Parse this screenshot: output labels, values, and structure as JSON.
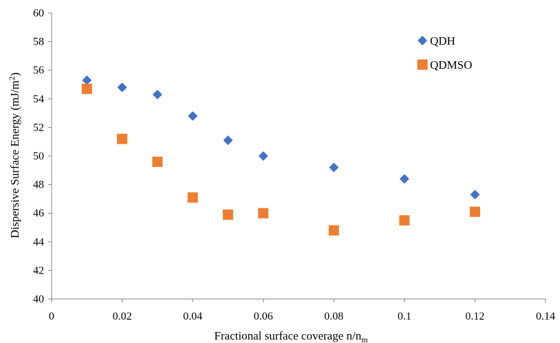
{
  "chart_data": {
    "type": "scatter",
    "title": "",
    "xlabel": "Fractional surface coverage n/n",
    "xlabel_sub": "m",
    "ylabel": "Dispersive Surface Energy (mJ/m",
    "ylabel_sup": "2",
    "ylabel_end": ")",
    "xlim": [
      0,
      0.14
    ],
    "ylim": [
      40,
      60
    ],
    "x_ticks": [
      "0",
      "0.02",
      "0.04",
      "0.06",
      "0.08",
      "0.1",
      "0.12",
      "0.14"
    ],
    "y_ticks": [
      "40",
      "42",
      "44",
      "46",
      "48",
      "50",
      "52",
      "54",
      "56",
      "58",
      "60"
    ],
    "grid": false,
    "legend_position": "top-right",
    "series": [
      {
        "name": "QDH",
        "marker": "diamond",
        "color": "#4472C4",
        "x": [
          0.01,
          0.02,
          0.03,
          0.04,
          0.05,
          0.06,
          0.08,
          0.1,
          0.12
        ],
        "y": [
          55.3,
          54.8,
          54.3,
          52.8,
          51.1,
          50.0,
          49.2,
          48.4,
          47.3
        ]
      },
      {
        "name": "QDMSO",
        "marker": "square",
        "color": "#ED7D31",
        "x": [
          0.01,
          0.02,
          0.03,
          0.04,
          0.05,
          0.06,
          0.08,
          0.1,
          0.12
        ],
        "y": [
          54.7,
          51.2,
          49.6,
          47.1,
          45.9,
          46.0,
          44.8,
          45.5,
          46.1
        ]
      }
    ]
  }
}
